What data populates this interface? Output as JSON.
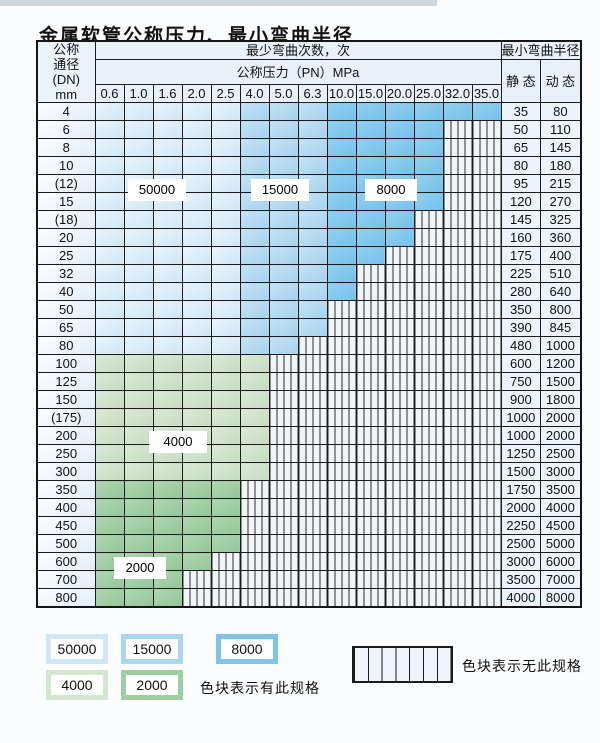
{
  "page": {
    "title": "金属软管公称压力、最小弯曲半径"
  },
  "table": {
    "header": {
      "dn_lines": [
        "公称",
        "通径",
        "(DN)",
        "mm"
      ],
      "cycles_title": "最少弯曲次数，次",
      "pressure_title": "公称压力（PN）MPa",
      "radius_title": "最小弯曲半径",
      "static_label": "静 态",
      "dynamic_label": "动 态",
      "pressures": [
        "0.6",
        "1.0",
        "1.6",
        "2.0",
        "2.5",
        "4.0",
        "5.0",
        "6.3",
        "10.0",
        "15.0",
        "20.0",
        "25.0",
        "32.0",
        "35.0"
      ]
    },
    "blue_bands": [
      {
        "cycles": "50000",
        "from": "0.6",
        "to": "2.5"
      },
      {
        "cycles": "15000",
        "from": "4.0",
        "to": "6.3"
      },
      {
        "cycles": "8000",
        "from": "10.0",
        "to": "35.0"
      }
    ],
    "rows": [
      {
        "dn": "4",
        "region": "blue",
        "colored_through": "35.0",
        "static": "35",
        "dynamic": "80"
      },
      {
        "dn": "6",
        "region": "blue",
        "colored_through": "25.0",
        "static": "50",
        "dynamic": "110"
      },
      {
        "dn": "8",
        "region": "blue",
        "colored_through": "25.0",
        "static": "65",
        "dynamic": "145"
      },
      {
        "dn": "10",
        "region": "blue",
        "colored_through": "25.0",
        "static": "80",
        "dynamic": "180"
      },
      {
        "dn": "(12)",
        "region": "blue",
        "colored_through": "25.0",
        "static": "95",
        "dynamic": "215"
      },
      {
        "dn": "15",
        "region": "blue",
        "colored_through": "25.0",
        "static": "120",
        "dynamic": "270"
      },
      {
        "dn": "(18)",
        "region": "blue",
        "colored_through": "20.0",
        "static": "145",
        "dynamic": "325"
      },
      {
        "dn": "20",
        "region": "blue",
        "colored_through": "20.0",
        "static": "160",
        "dynamic": "360"
      },
      {
        "dn": "25",
        "region": "blue",
        "colored_through": "15.0",
        "static": "175",
        "dynamic": "400"
      },
      {
        "dn": "32",
        "region": "blue",
        "colored_through": "10.0",
        "static": "225",
        "dynamic": "510"
      },
      {
        "dn": "40",
        "region": "blue",
        "colored_through": "10.0",
        "static": "280",
        "dynamic": "640"
      },
      {
        "dn": "50",
        "region": "blue",
        "colored_through": "6.3",
        "static": "350",
        "dynamic": "800"
      },
      {
        "dn": "65",
        "region": "blue",
        "colored_through": "6.3",
        "static": "390",
        "dynamic": "845"
      },
      {
        "dn": "80",
        "region": "blue",
        "colored_through": "5.0",
        "static": "480",
        "dynamic": "1000"
      },
      {
        "dn": "100",
        "region": "4000",
        "colored_through": "4.0",
        "static": "600",
        "dynamic": "1200"
      },
      {
        "dn": "125",
        "region": "4000",
        "colored_through": "4.0",
        "static": "750",
        "dynamic": "1500"
      },
      {
        "dn": "150",
        "region": "4000",
        "colored_through": "4.0",
        "static": "900",
        "dynamic": "1800"
      },
      {
        "dn": "(175)",
        "region": "4000",
        "colored_through": "4.0",
        "static": "1000",
        "dynamic": "2000"
      },
      {
        "dn": "200",
        "region": "4000",
        "colored_through": "4.0",
        "static": "1000",
        "dynamic": "2000"
      },
      {
        "dn": "250",
        "region": "4000",
        "colored_through": "4.0",
        "static": "1250",
        "dynamic": "2500"
      },
      {
        "dn": "300",
        "region": "4000",
        "colored_through": "4.0",
        "static": "1500",
        "dynamic": "3000"
      },
      {
        "dn": "350",
        "region": "2000",
        "colored_through": "2.5",
        "static": "1750",
        "dynamic": "3500"
      },
      {
        "dn": "400",
        "region": "2000",
        "colored_through": "2.5",
        "static": "2000",
        "dynamic": "4000"
      },
      {
        "dn": "450",
        "region": "2000",
        "colored_through": "2.5",
        "static": "2250",
        "dynamic": "4500"
      },
      {
        "dn": "500",
        "region": "2000",
        "colored_through": "2.5",
        "static": "2500",
        "dynamic": "5000"
      },
      {
        "dn": "600",
        "region": "2000",
        "colored_through": "2.0",
        "static": "3000",
        "dynamic": "6000"
      },
      {
        "dn": "700",
        "region": "2000",
        "colored_through": "1.6",
        "static": "3500",
        "dynamic": "7000"
      },
      {
        "dn": "800",
        "region": "2000",
        "colored_through": "1.6",
        "static": "4000",
        "dynamic": "8000"
      }
    ]
  },
  "in_table_labels": [
    "50000",
    "15000",
    "8000",
    "4000",
    "2000"
  ],
  "legend": {
    "cycle_items": [
      {
        "label": "50000"
      },
      {
        "label": "15000"
      },
      {
        "label": "8000"
      },
      {
        "label": "4000"
      },
      {
        "label": "2000"
      }
    ],
    "present_note": "色块表示有此规格",
    "absent_note": "色块表示无此规格"
  },
  "colors": {
    "band_50000": "#d9eaf7",
    "band_15000": "#a4d2ee",
    "band_8000": "#72c1ea",
    "band_4000": "#c6dcc2",
    "band_2000": "#93c698",
    "hatch_bg": "#f0f5fa",
    "header_bg": "#e8f1f9"
  }
}
